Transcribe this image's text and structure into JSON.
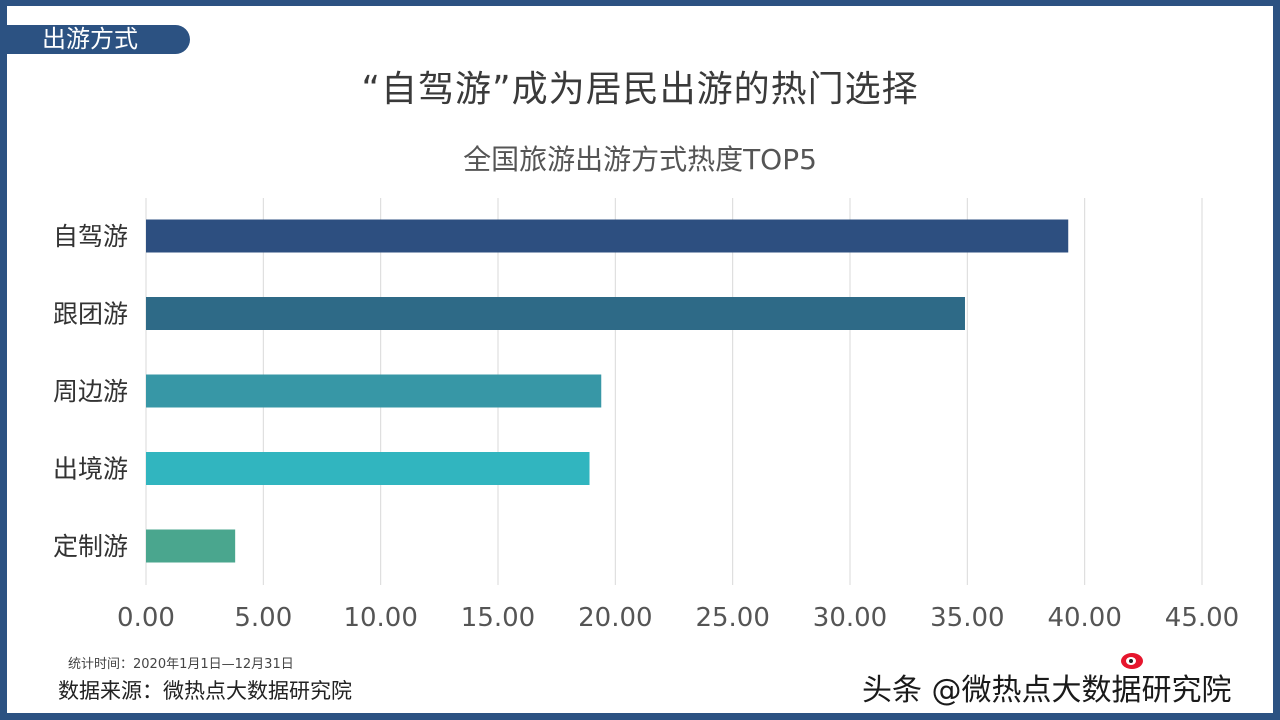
{
  "section_tab": "出游方式",
  "main_title": "“自驾游”成为居民出游的热门选择",
  "chart_data": {
    "type": "bar",
    "orientation": "horizontal",
    "title": "全国旅游出游方式热度TOP5",
    "categories": [
      "自驾游",
      "跟团游",
      "周边游",
      "出境游",
      "定制游"
    ],
    "values": [
      39.3,
      34.9,
      19.4,
      18.9,
      3.8
    ],
    "colors": [
      "#2d4f80",
      "#2e6a87",
      "#3797a6",
      "#31b5bf",
      "#4aa68e"
    ],
    "xlim": [
      0,
      45
    ],
    "xticks": [
      "0.00",
      "5.00",
      "10.00",
      "15.00",
      "20.00",
      "25.00",
      "30.00",
      "35.00",
      "40.00",
      "45.00"
    ],
    "grid": true,
    "legend": "none"
  },
  "footnotes": {
    "period": "统计时间：2020年1月1日—12月31日",
    "source": "数据来源：微热点大数据研究院"
  },
  "watermark": {
    "text": "头条 @微热点大数据研究院",
    "logo_text": "微热点"
  }
}
